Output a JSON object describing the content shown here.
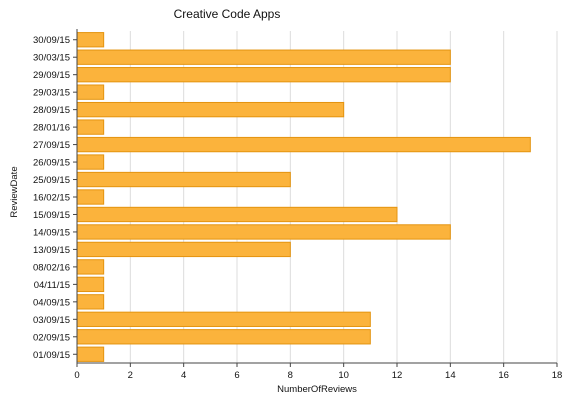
{
  "chart_data": {
    "type": "bar",
    "orientation": "horizontal",
    "title": "Creative Code Apps",
    "xlabel": "NumberOfReviews",
    "ylabel": "ReviewDate",
    "xlim": [
      0,
      18
    ],
    "xticks": [
      0,
      2,
      4,
      6,
      8,
      10,
      12,
      14,
      16,
      18
    ],
    "grid": "vertical",
    "bar_color": "#fbb33c",
    "bar_edge_color": "#e49410",
    "categories": [
      "30/09/15",
      "30/03/15",
      "29/09/15",
      "29/03/15",
      "28/09/15",
      "28/01/16",
      "27/09/15",
      "26/09/15",
      "25/09/15",
      "16/02/15",
      "15/09/15",
      "14/09/15",
      "13/09/15",
      "08/02/16",
      "04/11/15",
      "04/09/15",
      "03/09/15",
      "02/09/15",
      "01/09/15"
    ],
    "values": [
      1,
      14,
      14,
      1,
      10,
      1,
      17,
      1,
      8,
      1,
      12,
      14,
      8,
      1,
      1,
      1,
      11,
      11,
      1
    ]
  }
}
